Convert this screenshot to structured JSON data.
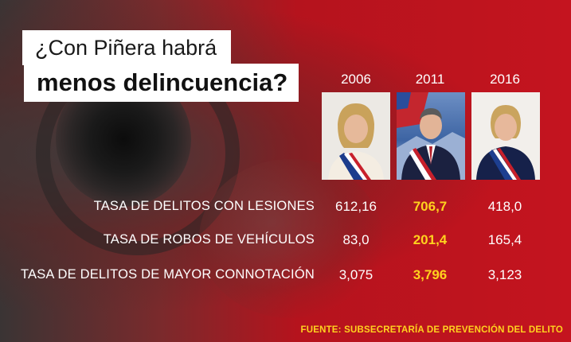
{
  "headline": {
    "line1": "¿Con Piñera habrá",
    "line2": "menos delincuencia?"
  },
  "years": [
    "2006",
    "2011",
    "2016"
  ],
  "rows": [
    {
      "label": "TASA DE DELITOS CON LESIONES",
      "values": [
        "612,16",
        "706,7",
        "418,0"
      ]
    },
    {
      "label": "TASA DE ROBOS DE VEHÍCULOS",
      "values": [
        "83,0",
        "201,4",
        "165,4"
      ]
    },
    {
      "label": "TASA DE DELITOS DE MAYOR CONNOTACIÓN",
      "values": [
        "3,075",
        "3,796",
        "3,123"
      ]
    }
  ],
  "highlight_column": "2011",
  "colors": {
    "background": "#c4141f",
    "highlight": "#ffd21e",
    "text": "#ffffff"
  },
  "source": "FUENTE: SUBSECRETARÍA DE PREVENCIÓN DEL DELITO"
}
